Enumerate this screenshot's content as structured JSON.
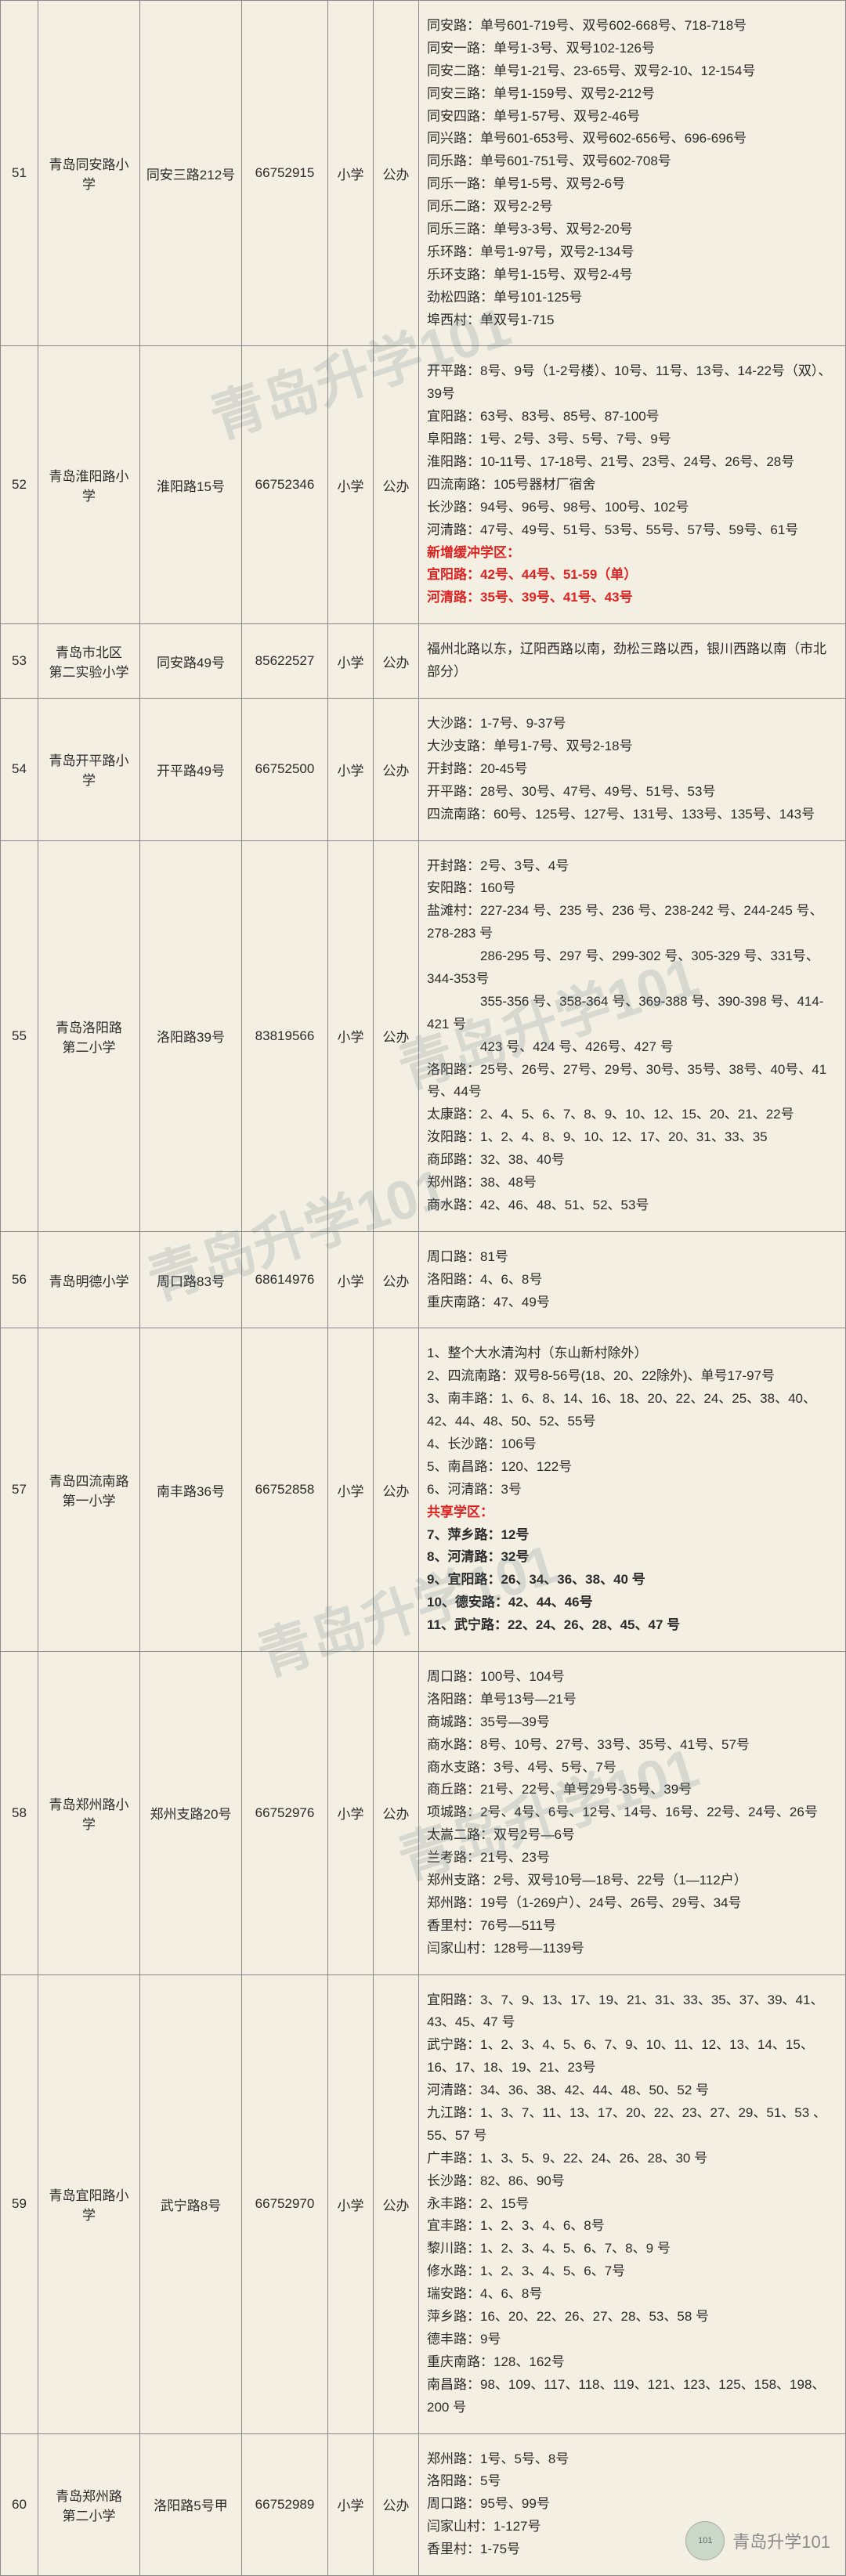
{
  "watermark_text": "青岛升学101",
  "footer_label": "青岛升学101",
  "rows": [
    {
      "idx": "51",
      "name": "青岛同安路小学",
      "addr": "同安三路212号",
      "phone": "66752915",
      "level": "小学",
      "type": "公办",
      "lines": [
        {
          "t": "同安路：单号601-719号、双号602-668号、718-718号"
        },
        {
          "t": "同安一路：单号1-3号、双号102-126号"
        },
        {
          "t": "同安二路：单号1-21号、23-65号、双号2-10、12-154号"
        },
        {
          "t": "同安三路：单号1-159号、双号2-212号"
        },
        {
          "t": "同安四路：单号1-57号、双号2-46号"
        },
        {
          "t": "同兴路：单号601-653号、双号602-656号、696-696号"
        },
        {
          "t": "同乐路：单号601-751号、双号602-708号"
        },
        {
          "t": "同乐一路：单号1-5号、双号2-6号"
        },
        {
          "t": "同乐二路：双号2-2号"
        },
        {
          "t": "同乐三路：单号3-3号、双号2-20号"
        },
        {
          "t": "乐环路：单号1-97号，双号2-134号"
        },
        {
          "t": "乐环支路：单号1-15号、双号2-4号"
        },
        {
          "t": "劲松四路：单号101-125号"
        },
        {
          "t": "埠西村：单双号1-715"
        }
      ]
    },
    {
      "idx": "52",
      "name": "青岛淮阳路小学",
      "addr": "淮阳路15号",
      "phone": "66752346",
      "level": "小学",
      "type": "公办",
      "lines": [
        {
          "t": "开平路：8号、9号（1-2号楼）、10号、11号、13号、14-22号（双）、39号"
        },
        {
          "t": "宜阳路：63号、83号、85号、87-100号"
        },
        {
          "t": "阜阳路：1号、2号、3号、5号、7号、9号"
        },
        {
          "t": "淮阳路：10-11号、17-18号、21号、23号、24号、26号、28号"
        },
        {
          "t": "四流南路：105号器材厂宿舍"
        },
        {
          "t": "长沙路：94号、96号、98号、100号、102号"
        },
        {
          "t": "河清路：47号、49号、51号、53号、55号、57号、59号、61号"
        },
        {
          "t": "新增缓冲学区：",
          "cls": "red"
        },
        {
          "t": "宜阳路：42号、44号、51-59（单）",
          "cls": "red bold"
        },
        {
          "t": "河清路：35号、39号、41号、43号",
          "cls": "red bold"
        }
      ]
    },
    {
      "idx": "53",
      "name": "青岛市北区\n第二实验小学",
      "addr": "同安路49号",
      "phone": "85622527",
      "level": "小学",
      "type": "公办",
      "lines": [
        {
          "t": "福州北路以东，辽阳西路以南，劲松三路以西，银川西路以南（市北部分）"
        }
      ]
    },
    {
      "idx": "54",
      "name": "青岛开平路小学",
      "addr": "开平路49号",
      "phone": "66752500",
      "level": "小学",
      "type": "公办",
      "lines": [
        {
          "t": "大沙路：1-7号、9-37号"
        },
        {
          "t": "大沙支路：单号1-7号、双号2-18号"
        },
        {
          "t": "开封路：20-45号"
        },
        {
          "t": "开平路：28号、30号、47号、49号、51号、53号"
        },
        {
          "t": "四流南路：60号、125号、127号、131号、133号、135号、143号"
        }
      ]
    },
    {
      "idx": "55",
      "name": "青岛洛阳路\n第二小学",
      "addr": "洛阳路39号",
      "phone": "83819566",
      "level": "小学",
      "type": "公办",
      "lines": [
        {
          "t": "开封路：2号、3号、4号"
        },
        {
          "t": "安阳路：160号"
        },
        {
          "t": "盐滩村：227-234 号、235 号、236 号、238-242 号、244-245 号、278-283 号"
        },
        {
          "t": "　　　　286-295 号、297 号、299-302 号、305-329 号、331号、344-353号"
        },
        {
          "t": "　　　　355-356 号、358-364 号、369-388 号、390-398 号、414-421 号"
        },
        {
          "t": "　　　　423 号、424 号、426号、427 号"
        },
        {
          "t": "洛阳路：25号、26号、27号、29号、30号、35号、38号、40号、41号、44号"
        },
        {
          "t": "太康路：2、4、5、6、7、8、9、10、12、15、20、21、22号"
        },
        {
          "t": "汝阳路：1、2、4、8、9、10、12、17、20、31、33、35"
        },
        {
          "t": "商邱路：32、38、40号"
        },
        {
          "t": "郑州路：38、48号"
        },
        {
          "t": "商水路：42、46、48、51、52、53号"
        }
      ]
    },
    {
      "idx": "56",
      "name": "青岛明德小学",
      "addr": "周口路83号",
      "phone": "68614976",
      "level": "小学",
      "type": "公办",
      "lines": [
        {
          "t": "周口路：81号"
        },
        {
          "t": "洛阳路：4、6、8号"
        },
        {
          "t": "重庆南路：47、49号"
        }
      ]
    },
    {
      "idx": "57",
      "name": "青岛四流南路\n第一小学",
      "addr": "南丰路36号",
      "phone": "66752858",
      "level": "小学",
      "type": "公办",
      "lines": [
        {
          "t": "1、整个大水清沟村（东山新村除外）"
        },
        {
          "t": "2、四流南路：双号8-56号(18、20、22除外)、单号17-97号"
        },
        {
          "t": "3、南丰路：1、6、8、14、16、18、20、22、24、25、38、40、42、44、48、50、52、55号"
        },
        {
          "t": "4、长沙路：106号"
        },
        {
          "t": "5、南昌路：120、122号"
        },
        {
          "t": "6、河清路：3号"
        },
        {
          "t": ""
        },
        {
          "t": "共享学区：",
          "cls": "red"
        },
        {
          "t": "7、萍乡路：12号",
          "cls": "bold"
        },
        {
          "t": "8、河清路：32号",
          "cls": "bold"
        },
        {
          "t": "9、宜阳路：26、34、36、38、40 号",
          "cls": "bold"
        },
        {
          "t": "10、德安路：42、44、46号",
          "cls": "bold"
        },
        {
          "t": "11、武宁路：22、24、26、28、45、47 号",
          "cls": "bold"
        }
      ]
    },
    {
      "idx": "58",
      "name": "青岛郑州路小学",
      "addr": "郑州支路20号",
      "phone": "66752976",
      "level": "小学",
      "type": "公办",
      "lines": [
        {
          "t": "周口路：100号、104号"
        },
        {
          "t": "洛阳路：单号13号—21号"
        },
        {
          "t": "商城路：35号—39号"
        },
        {
          "t": "商水路：8号、10号、27号、33号、35号、41号、57号"
        },
        {
          "t": "商水支路：3号、4号、5号、7号"
        },
        {
          "t": "商丘路：21号、22号、单号29号-35号、39号"
        },
        {
          "t": "项城路：2号、4号、6号、12号、14号、16号、22号、24号、26号"
        },
        {
          "t": "太嵩二路：双号2号—6号"
        },
        {
          "t": "兰考路：21号、23号"
        },
        {
          "t": "郑州支路：2号、双号10号—18号、22号（1—112户）"
        },
        {
          "t": "郑州路：19号（1-269户）、24号、26号、29号、34号"
        },
        {
          "t": "香里村：76号—511号"
        },
        {
          "t": "闫家山村：128号—1139号"
        }
      ]
    },
    {
      "idx": "59",
      "name": "青岛宜阳路小学",
      "addr": "武宁路8号",
      "phone": "66752970",
      "level": "小学",
      "type": "公办",
      "lines": [
        {
          "t": "宜阳路：3、7、9、13、17、19、21、31、33、35、37、39、41、43、45、47 号"
        },
        {
          "t": "武宁路：1、2、3、4、5、6、7、9、10、11、12、13、14、15、16、17、18、19、21、23号"
        },
        {
          "t": "河清路：34、36、38、42、44、48、50、52 号"
        },
        {
          "t": "九江路：1、3、7、11、13、17、20、22、23、27、29、51、53 、55、57 号"
        },
        {
          "t": "广丰路：1、3、5、9、22、24、26、28、30 号"
        },
        {
          "t": "长沙路：82、86、90号"
        },
        {
          "t": "永丰路：2、15号"
        },
        {
          "t": "宜丰路：1、2、3、4、6、8号"
        },
        {
          "t": "黎川路：1、2、3、4、5、6、7、8、9 号"
        },
        {
          "t": "修水路：1、2、3、4、5、6、7号"
        },
        {
          "t": "瑞安路：4、6、8号"
        },
        {
          "t": "萍乡路：16、20、22、26、27、28、53、58 号"
        },
        {
          "t": "德丰路：9号"
        },
        {
          "t": "重庆南路：128、162号"
        },
        {
          "t": "南昌路：98、109、117、118、119、121、123、125、158、198、200 号"
        }
      ]
    },
    {
      "idx": "60",
      "name": "青岛郑州路\n第二小学",
      "addr": "洛阳路5号甲",
      "phone": "66752989",
      "level": "小学",
      "type": "公办",
      "lines": [
        {
          "t": "郑州路：1号、5号、8号"
        },
        {
          "t": "洛阳路：5号"
        },
        {
          "t": "周口路：95号、99号"
        },
        {
          "t": "闫家山村：1-127号"
        },
        {
          "t": "香里村：1-75号"
        }
      ]
    }
  ]
}
